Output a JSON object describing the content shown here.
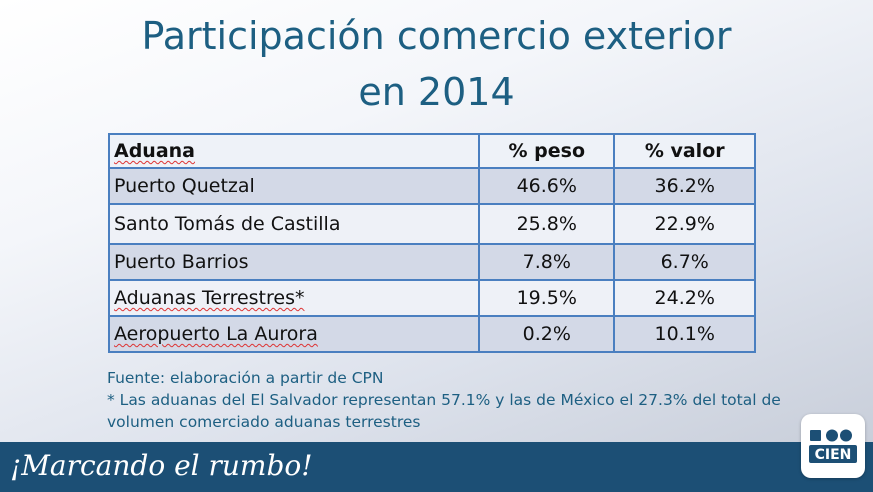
{
  "title": {
    "line1": "Participación comercio exterior",
    "line2": "en 2014"
  },
  "table": {
    "headers": [
      "Aduana",
      "% peso",
      "% valor"
    ],
    "rows": [
      {
        "aduana": "Puerto Quetzal",
        "peso": "46.6%",
        "valor": "36.2%"
      },
      {
        "aduana": "Santo Tomás de Castilla",
        "peso": "25.8%",
        "valor": "22.9%"
      },
      {
        "aduana": "Puerto Barrios",
        "peso": "7.8%",
        "valor": "6.7%"
      },
      {
        "aduana": "Aduanas Terrestres*",
        "peso": "19.5%",
        "valor": "24.2%"
      },
      {
        "aduana": "Aeropuerto La Aurora",
        "peso": "0.2%",
        "valor": "10.1%"
      }
    ]
  },
  "notes": {
    "source": "Fuente: elaboración a partir de CPN",
    "footnote": "* Las aduanas del El Salvador representan 57.1% y las de México el 27.3% del total de volumen comerciado aduanas terrestres"
  },
  "footer": {
    "slogan": "¡Marcando el rumbo!",
    "logo_text": "CIEN"
  },
  "colors": {
    "title": "#1d5f82",
    "footer_bar": "#1c4f75",
    "table_border": "#4a7fc0"
  }
}
